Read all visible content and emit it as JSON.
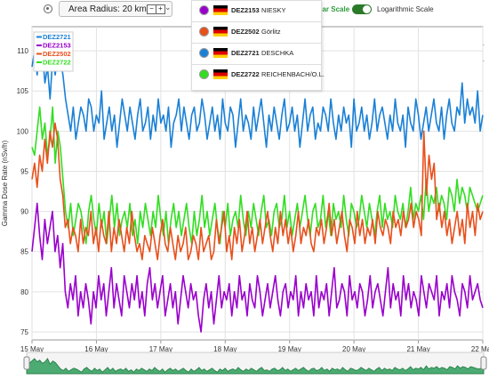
{
  "toolbar": {
    "radius_label": "Area Radius: 20 km",
    "minus": "−",
    "plus": "+",
    "chevron": "⌄",
    "linear_label": "ear Scale",
    "log_label": "Logarithmic Scale",
    "zoom_in": "+",
    "zoom_out": "+"
  },
  "stations": [
    {
      "id": "DEZ2153",
      "name": "NIESKY",
      "color": "#9900cc"
    },
    {
      "id": "DEZ2502",
      "name": "Görlitz",
      "color": "#e8501c"
    },
    {
      "id": "DEZ2721",
      "name": "DESCHKA",
      "color": "#1a80d6"
    },
    {
      "id": "DEZ2722",
      "name": "REICHENBACH/O.L.",
      "color": "#33dd22"
    }
  ],
  "chart_data": {
    "type": "line",
    "xlabel": "",
    "ylabel": "Gamma Dose Rate (nSv/h)",
    "x_ticks": [
      "15 May",
      "16 May",
      "17 May",
      "18 May",
      "19 May",
      "20 May",
      "21 May",
      "22 May"
    ],
    "x_range": [
      "15 May 00:00",
      "22 May 00:00"
    ],
    "sample_interval_hours": 1,
    "ylim": [
      74,
      113
    ],
    "y_ticks": [
      75,
      80,
      85,
      90,
      95,
      100,
      105,
      110
    ],
    "grid": true,
    "legend_position": "top-left",
    "series": [
      {
        "name": "DEZ2721",
        "color": "#1a80d6",
        "values": [
          108,
          110,
          107,
          111,
          110,
          106,
          108,
          104,
          109,
          107,
          110,
          109,
          107,
          104,
          102,
          100,
          103,
          99,
          101,
          103,
          102,
          100,
          104,
          103,
          100,
          102,
          101,
          105,
          99,
          101,
          103,
          100,
          102,
          98,
          101,
          104,
          102,
          100,
          103,
          101,
          99,
          102,
          104,
          100,
          101,
          103,
          99,
          102,
          100,
          104,
          101,
          102,
          100,
          103,
          98,
          101,
          102,
          104,
          100,
          103,
          101,
          99,
          102,
          103,
          100,
          101,
          104,
          102,
          99,
          101,
          103,
          100,
          102,
          99,
          104,
          101,
          100,
          103,
          102,
          98,
          101,
          104,
          100,
          102,
          101,
          99,
          103,
          100,
          102,
          104,
          101,
          98,
          102,
          100,
          103,
          101,
          99,
          102,
          104,
          100,
          101,
          103,
          100,
          102,
          98,
          101,
          104,
          100,
          102,
          103,
          99,
          101,
          100,
          103,
          102,
          100,
          104,
          101,
          99,
          102,
          100,
          103,
          101,
          102,
          98,
          104,
          100,
          101,
          103,
          100,
          102,
          99,
          101,
          104,
          100,
          102,
          103,
          101,
          99,
          102,
          100,
          104,
          101,
          100,
          102,
          98,
          103,
          101,
          100,
          104,
          102,
          99,
          101,
          103,
          100,
          102,
          104,
          101,
          100,
          103,
          99,
          102,
          104,
          101,
          100,
          103,
          102,
          106,
          101,
          104,
          102,
          103,
          101,
          105,
          100,
          102
        ]
      },
      {
        "name": "DEZ2153",
        "color": "#9900cc",
        "values": [
          85,
          88,
          91,
          87,
          84,
          89,
          86,
          88,
          90,
          85,
          87,
          83,
          86,
          80,
          78,
          81,
          79,
          82,
          77,
          80,
          78,
          81,
          79,
          76,
          80,
          78,
          82,
          79,
          81,
          77,
          80,
          83,
          78,
          81,
          79,
          77,
          82,
          80,
          78,
          81,
          79,
          82,
          78,
          80,
          77,
          81,
          83,
          79,
          81,
          78,
          80,
          82,
          77,
          79,
          81,
          78,
          80,
          76,
          79,
          82,
          80,
          78,
          81,
          79,
          80,
          77,
          75,
          79,
          81,
          78,
          80,
          76,
          79,
          82,
          78,
          80,
          79,
          81,
          77,
          80,
          78,
          82,
          79,
          80,
          77,
          81,
          79,
          78,
          82,
          80,
          77,
          79,
          81,
          78,
          80,
          82,
          79,
          77,
          80,
          81,
          78,
          80,
          79,
          82,
          77,
          80,
          78,
          81,
          79,
          80,
          77,
          82,
          78,
          80,
          79,
          81,
          77,
          80,
          83,
          78,
          79,
          81,
          80,
          77,
          82,
          79,
          80,
          78,
          81,
          80,
          77,
          79,
          82,
          78,
          80,
          81,
          79,
          77,
          80,
          83,
          78,
          81,
          79,
          80,
          77,
          82,
          79,
          81,
          78,
          80,
          79,
          77,
          82,
          80,
          78,
          81,
          80,
          79,
          82,
          77,
          80,
          79,
          81,
          78,
          82,
          80,
          79,
          77,
          81,
          80,
          78,
          82,
          79,
          80,
          81,
          79,
          78
        ]
      },
      {
        "name": "DEZ2502",
        "color": "#e8501c",
        "values": [
          94,
          96,
          93,
          97,
          95,
          99,
          96,
          100,
          98,
          101,
          99,
          94,
          92,
          88,
          89,
          86,
          88,
          87,
          85,
          89,
          86,
          88,
          87,
          90,
          86,
          88,
          85,
          89,
          87,
          86,
          90,
          85,
          88,
          86,
          89,
          87,
          85,
          88,
          86,
          90,
          87,
          85,
          86,
          84,
          87,
          86,
          85,
          88,
          86,
          84,
          87,
          89,
          86,
          85,
          88,
          86,
          84,
          87,
          85,
          86,
          88,
          84,
          85,
          87,
          86,
          84,
          88,
          85,
          86,
          87,
          84,
          85,
          89,
          86,
          88,
          90,
          85,
          87,
          84,
          88,
          86,
          89,
          85,
          87,
          90,
          86,
          88,
          85,
          87,
          89,
          86,
          88,
          90,
          87,
          85,
          88,
          86,
          90,
          87,
          89,
          86,
          88,
          85,
          87,
          90,
          86,
          88,
          87,
          89,
          86,
          85,
          88,
          87,
          89,
          86,
          88,
          91,
          87,
          89,
          86,
          88,
          90,
          87,
          85,
          89,
          88,
          86,
          90,
          87,
          89,
          86,
          88,
          87,
          89,
          86,
          90,
          88,
          87,
          89,
          88,
          86,
          90,
          88,
          89,
          87,
          90,
          88,
          89,
          91,
          88,
          90,
          89,
          87,
          100,
          92,
          97,
          94,
          96,
          89,
          91,
          88,
          90,
          87,
          89,
          86,
          88,
          90,
          87,
          89,
          86,
          91,
          88,
          90,
          87,
          91,
          89,
          90
        ]
      },
      {
        "name": "DEZ2722",
        "color": "#33dd22",
        "values": [
          98,
          97,
          100,
          103,
          99,
          101,
          97,
          99,
          103,
          96,
          100,
          98,
          94,
          90,
          88,
          91,
          87,
          89,
          91,
          90,
          88,
          86,
          90,
          92,
          89,
          87,
          91,
          88,
          90,
          86,
          89,
          92,
          88,
          91,
          87,
          89,
          90,
          88,
          91,
          87,
          89,
          86,
          90,
          88,
          91,
          89,
          87,
          90,
          88,
          92,
          89,
          87,
          90,
          86,
          89,
          91,
          88,
          90,
          87,
          89,
          91,
          88,
          86,
          90,
          87,
          89,
          92,
          88,
          90,
          87,
          89,
          91,
          88,
          86,
          90,
          88,
          91,
          87,
          89,
          90,
          88,
          92,
          89,
          87,
          90,
          88,
          91,
          89,
          87,
          90,
          92,
          88,
          89,
          87,
          90,
          91,
          88,
          89,
          92,
          88,
          90,
          87,
          89,
          91,
          88,
          90,
          92,
          89,
          87,
          90,
          91,
          88,
          89,
          92,
          88,
          90,
          87,
          91,
          89,
          90,
          88,
          92,
          89,
          87,
          91,
          90,
          88,
          89,
          92,
          90,
          88,
          91,
          89,
          87,
          90,
          92,
          88,
          91,
          89,
          90,
          88,
          92,
          90,
          89,
          91,
          88,
          90,
          93,
          89,
          91,
          90,
          92,
          89,
          94,
          90,
          92,
          91,
          93,
          90,
          92,
          91,
          89,
          93,
          92,
          90,
          94,
          91,
          93,
          92,
          90,
          93,
          92,
          91,
          90,
          91,
          92
        ]
      }
    ]
  }
}
